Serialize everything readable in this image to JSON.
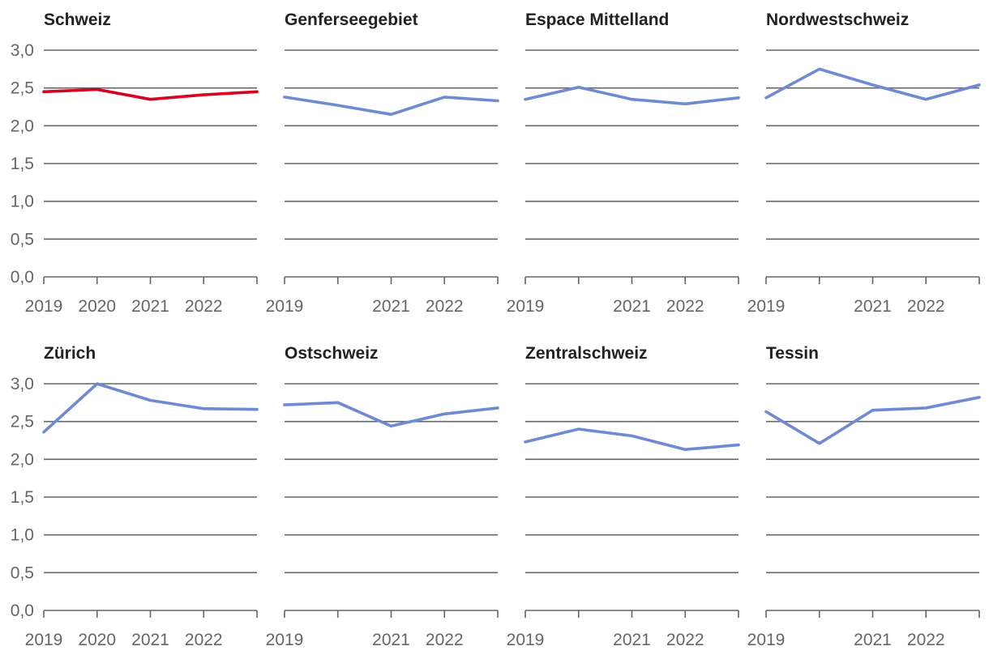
{
  "colors": {
    "highlight": "#d7001e",
    "series": "#7089d3",
    "grid": "#666666",
    "title": "#222222",
    "tick": "#666666"
  },
  "chart_data": [
    {
      "type": "line",
      "title": "Schweiz",
      "highlight": true,
      "x": [
        2019,
        2020,
        2021,
        2022,
        2023
      ],
      "y": [
        2.45,
        2.48,
        2.35,
        2.41,
        2.45
      ],
      "x_tick_labels": [
        "2019",
        "2020",
        "2021",
        "2022",
        ""
      ],
      "y_tick_labels": [
        "0,0",
        "0,5",
        "1,0",
        "1,5",
        "2,0",
        "2,5",
        "3,0"
      ],
      "ylim": [
        0,
        3
      ]
    },
    {
      "type": "line",
      "title": "Genferseegebiet",
      "highlight": false,
      "x": [
        2019,
        2020,
        2021,
        2022,
        2023
      ],
      "y": [
        2.38,
        2.27,
        2.15,
        2.38,
        2.33
      ],
      "x_tick_labels": [
        "2019",
        "",
        "2021",
        "2022",
        ""
      ],
      "ylim": [
        0,
        3
      ]
    },
    {
      "type": "line",
      "title": "Espace Mittelland",
      "highlight": false,
      "x": [
        2019,
        2020,
        2021,
        2022,
        2023
      ],
      "y": [
        2.35,
        2.51,
        2.35,
        2.29,
        2.37
      ],
      "x_tick_labels": [
        "2019",
        "",
        "2021",
        "2022",
        ""
      ],
      "ylim": [
        0,
        3
      ]
    },
    {
      "type": "line",
      "title": "Nordwestschweiz",
      "highlight": false,
      "x": [
        2019,
        2020,
        2021,
        2022,
        2023
      ],
      "y": [
        2.37,
        2.75,
        2.54,
        2.35,
        2.54
      ],
      "x_tick_labels": [
        "2019",
        "",
        "2021",
        "2022",
        ""
      ],
      "ylim": [
        0,
        3
      ]
    },
    {
      "type": "line",
      "title": "Zürich",
      "highlight": false,
      "x": [
        2019,
        2020,
        2021,
        2022,
        2023
      ],
      "y": [
        2.36,
        3.0,
        2.78,
        2.67,
        2.66
      ],
      "x_tick_labels": [
        "2019",
        "2020",
        "2021",
        "2022",
        ""
      ],
      "y_tick_labels": [
        "0,0",
        "0,5",
        "1,0",
        "1,5",
        "2,0",
        "2,5",
        "3,0"
      ],
      "ylim": [
        0,
        3
      ]
    },
    {
      "type": "line",
      "title": "Ostschweiz",
      "highlight": false,
      "x": [
        2019,
        2020,
        2021,
        2022,
        2023
      ],
      "y": [
        2.72,
        2.75,
        2.44,
        2.6,
        2.68
      ],
      "x_tick_labels": [
        "2019",
        "",
        "2021",
        "2022",
        ""
      ],
      "ylim": [
        0,
        3
      ]
    },
    {
      "type": "line",
      "title": "Zentralschweiz",
      "highlight": false,
      "x": [
        2019,
        2020,
        2021,
        2022,
        2023
      ],
      "y": [
        2.23,
        2.4,
        2.31,
        2.13,
        2.19
      ],
      "x_tick_labels": [
        "2019",
        "",
        "2021",
        "2022",
        ""
      ],
      "ylim": [
        0,
        3
      ]
    },
    {
      "type": "line",
      "title": "Tessin",
      "highlight": false,
      "x": [
        2019,
        2020,
        2021,
        2022,
        2023
      ],
      "y": [
        2.63,
        2.21,
        2.65,
        2.68,
        2.82
      ],
      "x_tick_labels": [
        "2019",
        "",
        "2021",
        "2022",
        ""
      ],
      "ylim": [
        0,
        3
      ]
    }
  ]
}
